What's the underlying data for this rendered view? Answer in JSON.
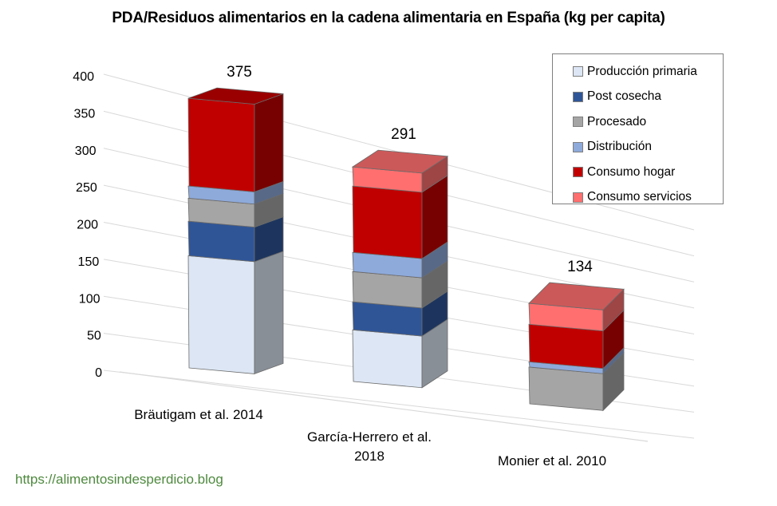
{
  "chart_data": {
    "type": "bar",
    "subtype": "3d-stacked-column",
    "title": "PDA/Residuos alimentarios en la cadena alimentaria en España (kg per capita)",
    "xlabel": "",
    "ylabel": "",
    "ylim": [
      0,
      400
    ],
    "yticks": [
      0,
      50,
      100,
      150,
      200,
      250,
      300,
      350,
      400
    ],
    "grid": true,
    "legend_position": "top-right",
    "categories": [
      "Bräutigam et al. 2014",
      "García-Herrero et al. 2018",
      "Monier et al. 2010"
    ],
    "category_label_lines": [
      [
        "Bräutigam et al. 2014"
      ],
      [
        "García-Herrero et al.",
        "2018"
      ],
      [
        "Monier et al. 2010"
      ]
    ],
    "totals": [
      375,
      291,
      134
    ],
    "series": [
      {
        "name": "Producción primaria",
        "color": "#dce6f4",
        "values": [
          156,
          70,
          0
        ]
      },
      {
        "name": "Post cosecha",
        "color": "#2f5597",
        "values": [
          48,
          38,
          0
        ]
      },
      {
        "name": "Procesado",
        "color": "#a5a5a5",
        "values": [
          32,
          41,
          49
        ]
      },
      {
        "name": "Distribución",
        "color": "#8eaadb",
        "values": [
          17,
          26,
          7
        ]
      },
      {
        "name": "Consumo hogar",
        "color": "#c00000",
        "values": [
          122,
          90,
          50
        ]
      },
      {
        "name": "Consumo servicios",
        "color": "#ff6f6f",
        "values": [
          0,
          26,
          28
        ]
      }
    ]
  },
  "source_url": "https://alimentosindesperdicio.blog"
}
